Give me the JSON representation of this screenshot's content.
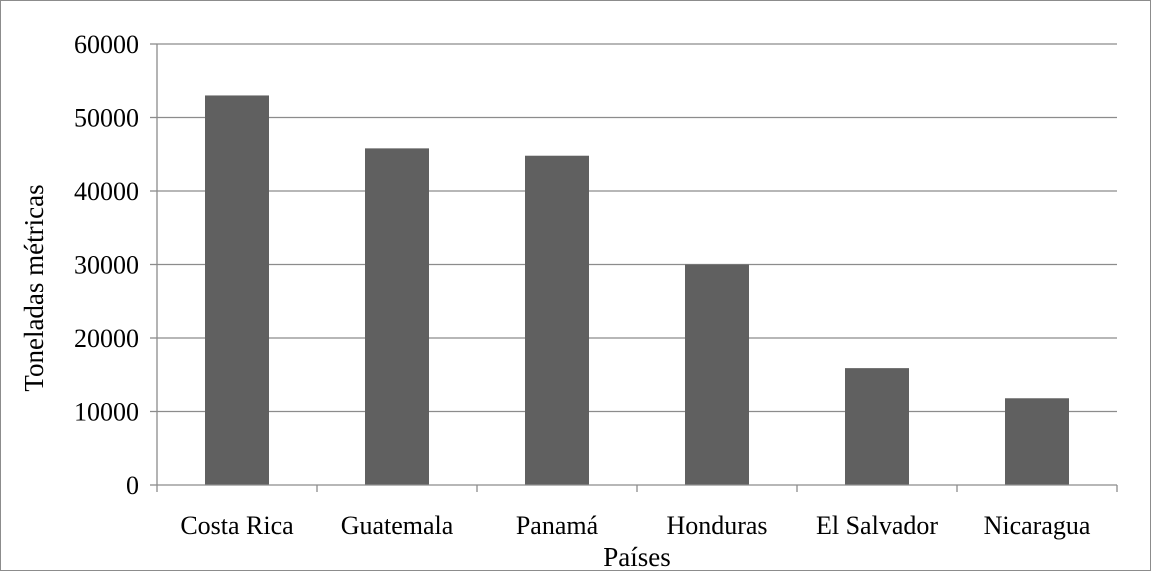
{
  "chart_data": {
    "type": "bar",
    "title": "",
    "xlabel": "Países",
    "ylabel": "Toneladas métricas",
    "categories": [
      "Costa Rica",
      "Guatemala",
      "Panamá",
      "Honduras",
      "El Salvador",
      "Nicaragua"
    ],
    "values": [
      53000,
      45800,
      44800,
      30000,
      15900,
      11800
    ],
    "ylim": [
      0,
      60000
    ],
    "yticks": [
      "0",
      "10000",
      "20000",
      "30000",
      "40000",
      "50000",
      "60000"
    ],
    "grid": true,
    "legend": "none",
    "colors": {
      "bar": "#606060",
      "grid": "#8c8c8c",
      "axis": "#8c8c8c"
    }
  }
}
